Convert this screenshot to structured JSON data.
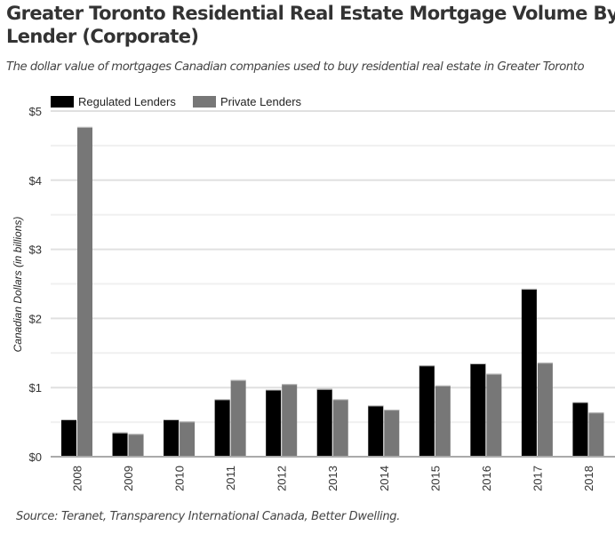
{
  "header": {
    "title": "Greater Toronto Residential Real Estate Mortgage Volume By Lender (Corporate)",
    "subtitle": "The dollar value of mortgages Canadian companies used to buy residential real estate in Greater Toronto"
  },
  "footer": {
    "source": "Source: Teranet, Transparency International Canada, Better Dwelling."
  },
  "colors": {
    "regulated": "#000000",
    "private": "#777777",
    "grid_major": "#e0e0e0",
    "grid_minor": "#f0f0f0",
    "axis": "#aaaaaa"
  },
  "chart_data": {
    "type": "bar",
    "title": "Greater Toronto Residential Real Estate Mortgage Volume By Lender (Corporate)",
    "subtitle": "The dollar value of mortgages Canadian companies used to buy residential real estate in Greater Toronto",
    "xlabel": "",
    "ylabel": "Canadian Dollars (in billions)",
    "ylim": [
      0,
      5
    ],
    "yticks": [
      0,
      1,
      2,
      3,
      4,
      5
    ],
    "ytick_labels": [
      "$0",
      "$1",
      "$2",
      "$3",
      "$4",
      "$5"
    ],
    "minor_gridlines": [
      0.5,
      1.5,
      2.5,
      3.5,
      4.5
    ],
    "grid": true,
    "legend_position": "top-left",
    "categories": [
      "2008",
      "2009",
      "2010",
      "2011",
      "2012",
      "2013",
      "2014",
      "2015",
      "2016",
      "2017",
      "2018"
    ],
    "series": [
      {
        "name": "Regulated Lenders",
        "color": "#000000",
        "values": [
          0.54,
          0.35,
          0.54,
          0.83,
          0.97,
          0.98,
          0.74,
          1.32,
          1.35,
          2.43,
          0.79
        ]
      },
      {
        "name": "Private Lenders",
        "color": "#777777",
        "values": [
          4.77,
          0.33,
          0.51,
          1.11,
          1.05,
          0.83,
          0.68,
          1.03,
          1.2,
          1.36,
          0.64
        ]
      }
    ],
    "units": "billions CAD"
  }
}
